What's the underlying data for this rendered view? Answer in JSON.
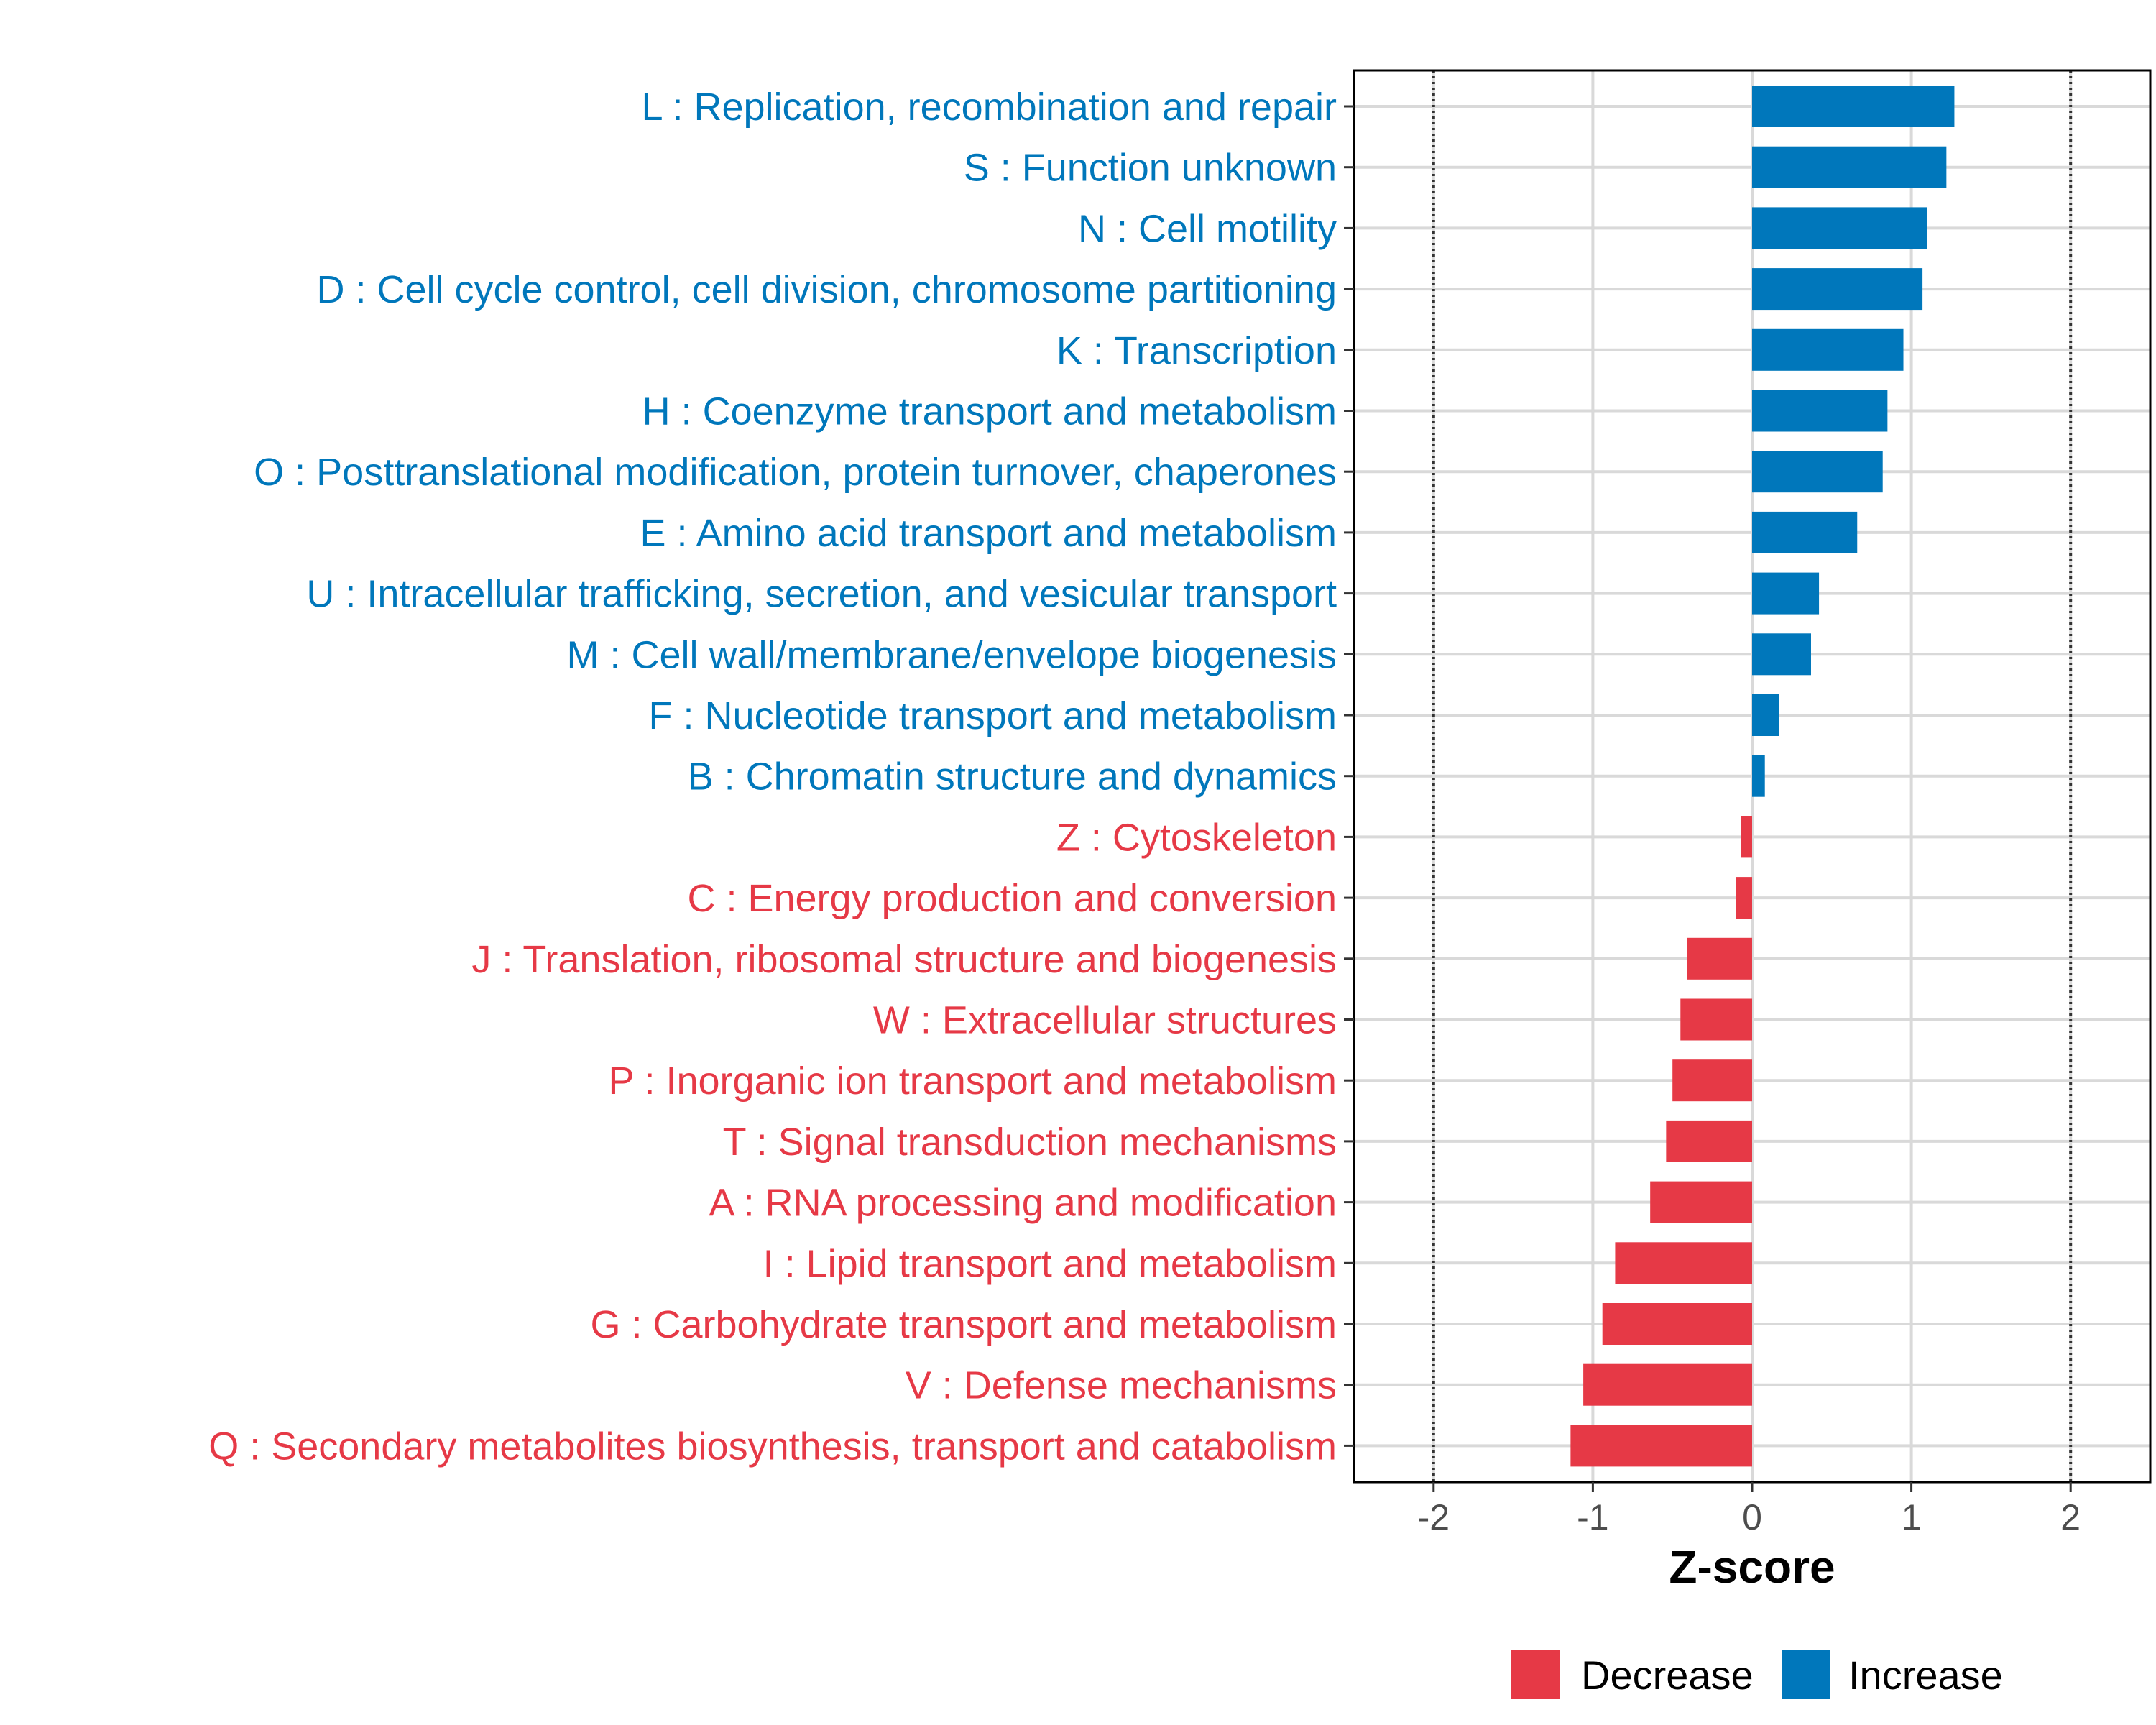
{
  "chart_data": {
    "type": "bar",
    "orientation": "horizontal",
    "title": "",
    "xlabel": "Z-score",
    "ylabel": "",
    "xlim": [
      -2.5,
      2.5
    ],
    "x_ticks": [
      -2,
      -1,
      0,
      1,
      2
    ],
    "x_tick_labels": [
      "-2",
      "-1",
      "0",
      "1",
      "2"
    ],
    "reference_lines": [
      -2,
      2
    ],
    "grid": true,
    "legend_position": "bottom",
    "colors": {
      "Increase": "#0077bb",
      "Decrease": "#e63946"
    },
    "legend": [
      {
        "label": "Decrease",
        "color": "#e63946"
      },
      {
        "label": "Increase",
        "color": "#0077bb"
      }
    ],
    "categories": [
      "L : Replication, recombination and repair",
      "S : Function unknown",
      "N : Cell motility",
      "D : Cell cycle control, cell division, chromosome partitioning",
      "K : Transcription",
      "H : Coenzyme transport and metabolism",
      "O : Posttranslational modification, protein turnover, chaperones",
      "E : Amino acid transport and metabolism",
      "U : Intracellular trafficking, secretion, and vesicular transport",
      "M : Cell wall/membrane/envelope biogenesis",
      "F : Nucleotide transport and metabolism",
      "B : Chromatin structure and dynamics",
      "Z : Cytoskeleton",
      "C : Energy production and conversion",
      "J : Translation, ribosomal structure and biogenesis",
      "W : Extracellular structures",
      "P : Inorganic ion transport and metabolism",
      "T : Signal transduction mechanisms",
      "A : RNA processing and modification",
      "I : Lipid transport and metabolism",
      "G : Carbohydrate transport and metabolism",
      "V : Defense mechanisms",
      "Q : Secondary metabolites biosynthesis, transport and catabolism"
    ],
    "values": [
      1.27,
      1.22,
      1.1,
      1.07,
      0.95,
      0.85,
      0.82,
      0.66,
      0.42,
      0.37,
      0.17,
      0.08,
      -0.07,
      -0.1,
      -0.41,
      -0.45,
      -0.5,
      -0.54,
      -0.64,
      -0.86,
      -0.94,
      -1.06,
      -1.14
    ],
    "groups": [
      "Increase",
      "Increase",
      "Increase",
      "Increase",
      "Increase",
      "Increase",
      "Increase",
      "Increase",
      "Increase",
      "Increase",
      "Increase",
      "Increase",
      "Decrease",
      "Decrease",
      "Decrease",
      "Decrease",
      "Decrease",
      "Decrease",
      "Decrease",
      "Decrease",
      "Decrease",
      "Decrease",
      "Decrease"
    ]
  }
}
